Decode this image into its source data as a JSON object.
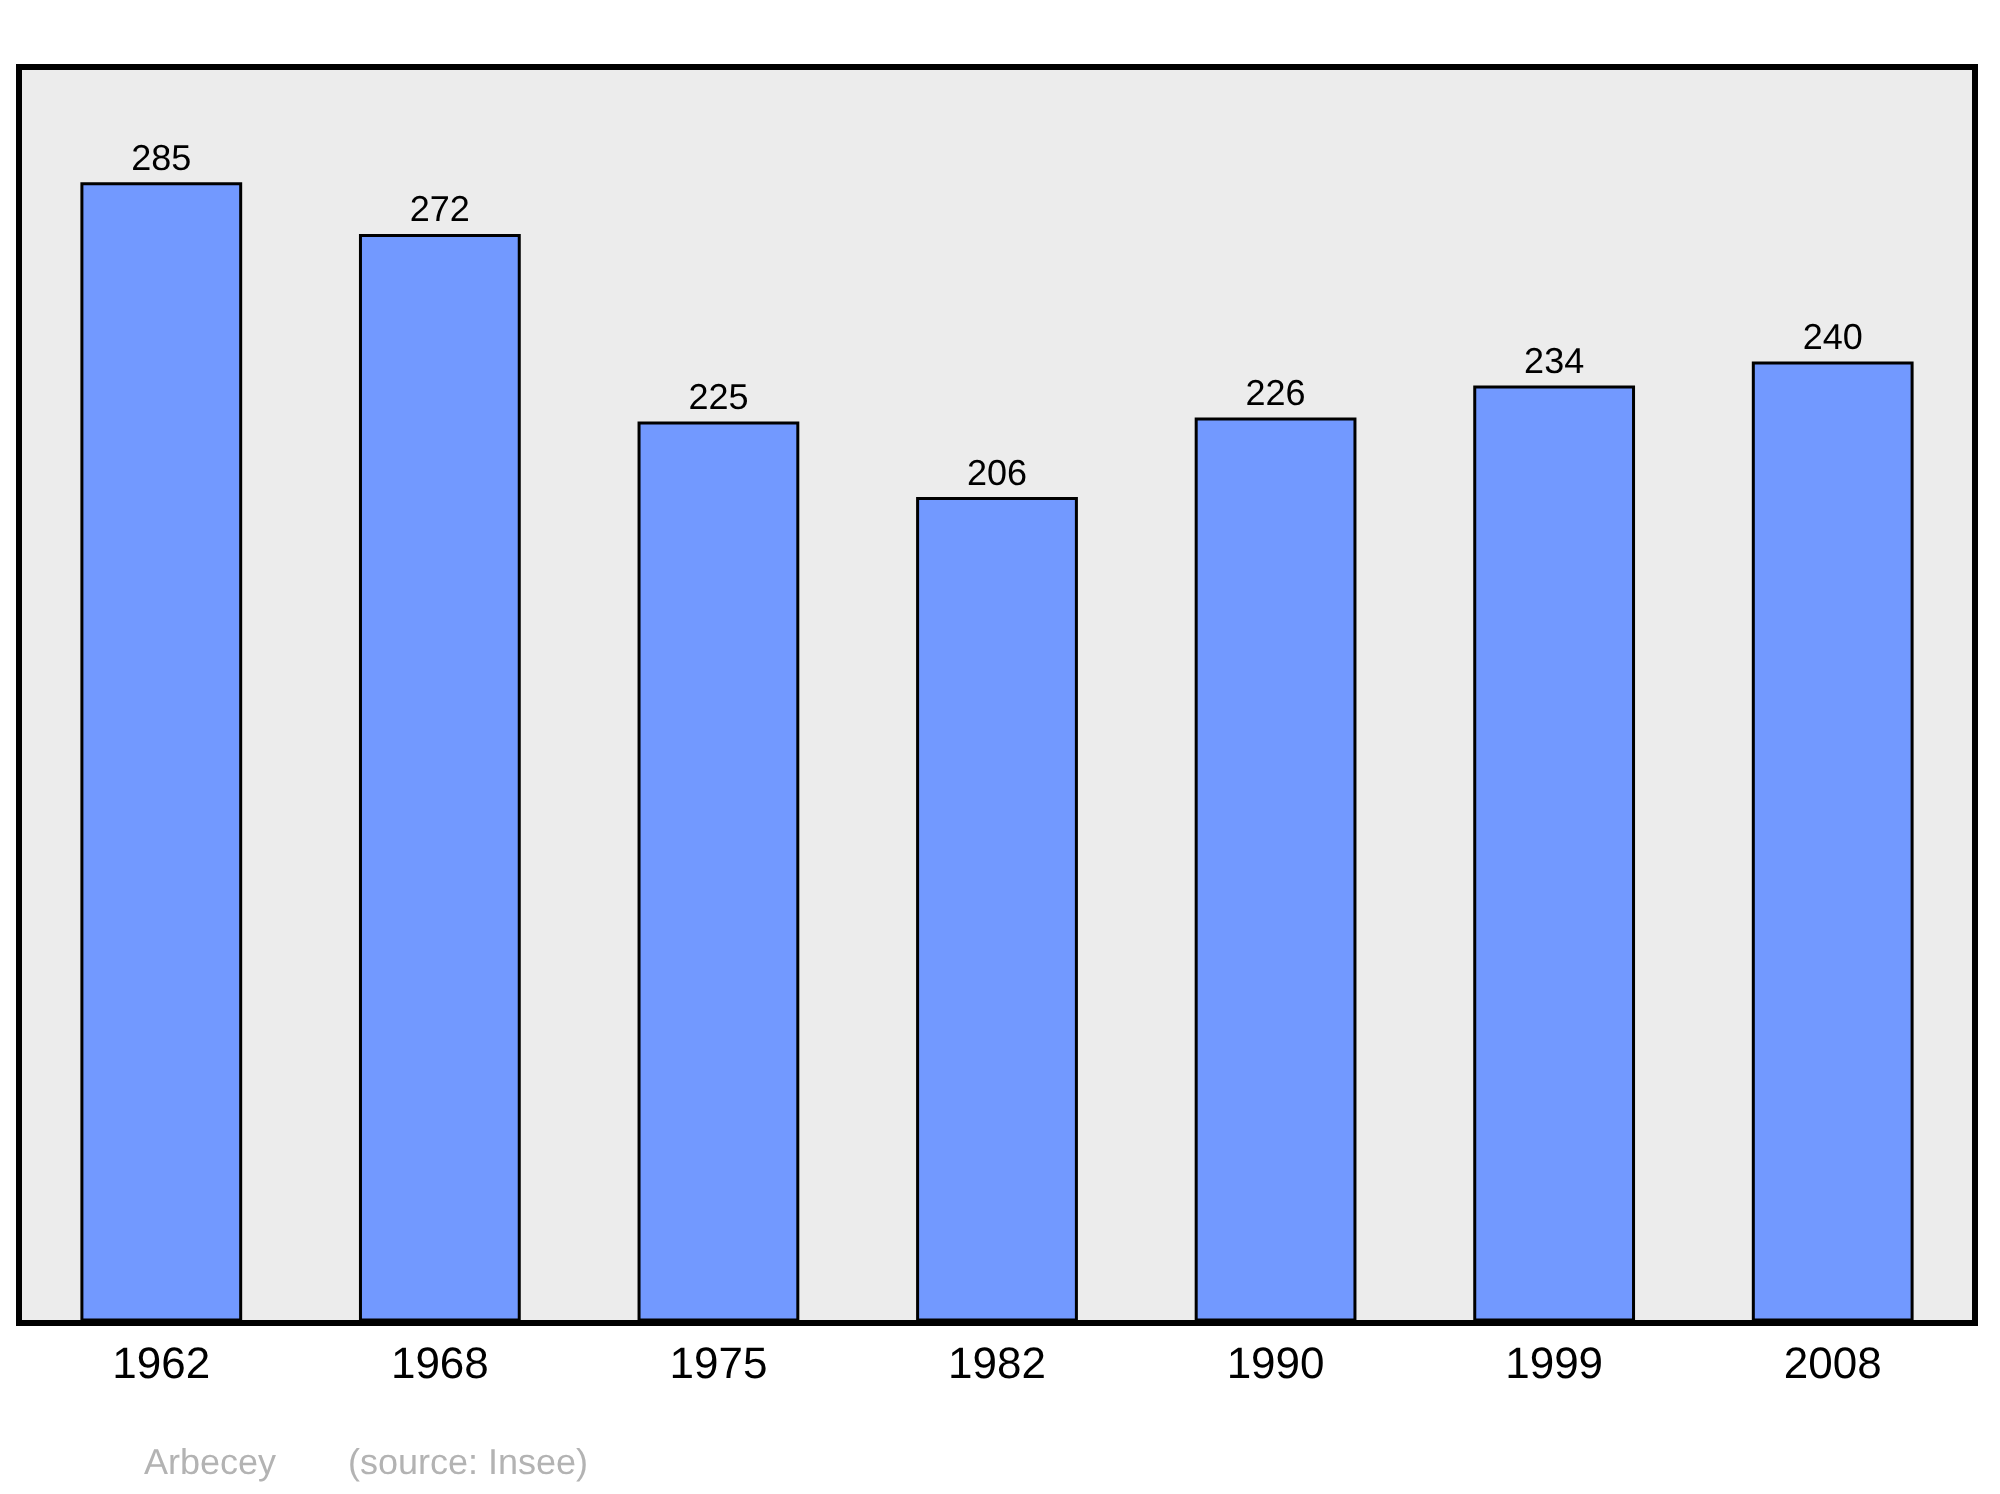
{
  "chart_data": {
    "type": "bar",
    "categories": [
      "1962",
      "1968",
      "1975",
      "1982",
      "1990",
      "1999",
      "2008"
    ],
    "values": [
      285,
      272,
      225,
      206,
      226,
      234,
      240
    ],
    "color": "#7299ff",
    "data_labels": true,
    "grid": false,
    "legend": false,
    "annotations": [
      "Arbecey",
      "(source: Insee)"
    ]
  }
}
